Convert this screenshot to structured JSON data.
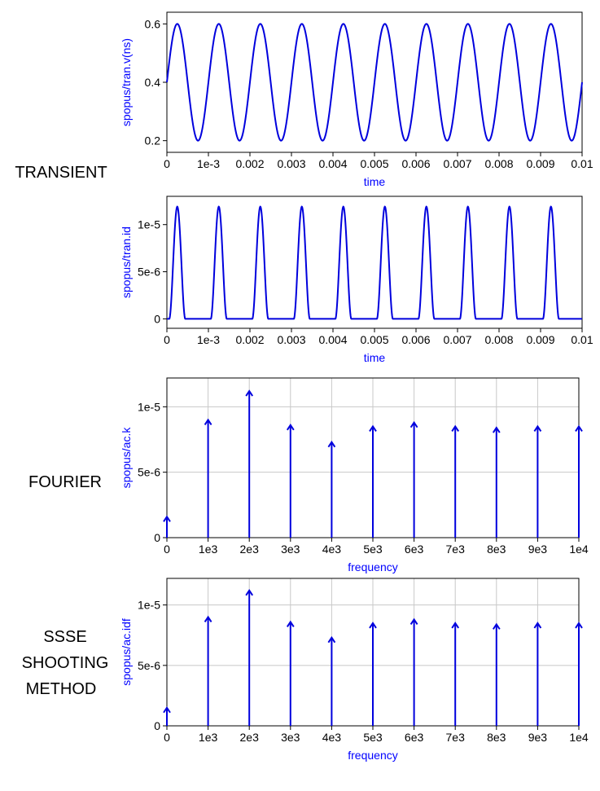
{
  "labels": {
    "transient": "TRANSIENT",
    "fourier": "FOURIER",
    "ssse_line1": "SSSE",
    "ssse_line2": "SHOOTING",
    "ssse_line3": "METHOD"
  },
  "colors": {
    "trace": "#0000dd",
    "axis_text": "#0000ff",
    "grid": "#c8c8c8"
  },
  "chart_data": [
    {
      "id": "tran-v",
      "type": "line",
      "xlabel": "time",
      "ylabel": "spopus/tran.v(ns)",
      "xlim": [
        0,
        0.01
      ],
      "ylim": [
        0.16,
        0.64
      ],
      "xticks": [
        0,
        0.001,
        0.002,
        0.003,
        0.004,
        0.005,
        0.006,
        0.007,
        0.008,
        0.009,
        0.01
      ],
      "xtick_labels": [
        "0",
        "1e-3",
        "0.002",
        "0.003",
        "0.004",
        "0.005",
        "0.006",
        "0.007",
        "0.008",
        "0.009",
        "0.01"
      ],
      "yticks": [
        0.2,
        0.4,
        0.6
      ],
      "ytick_labels": [
        "0.2",
        "0.4",
        "0.6"
      ],
      "grid": false,
      "signal": {
        "kind": "sine",
        "offset": 0.4,
        "amplitude": 0.2,
        "frequency": 1000,
        "phase": 0
      }
    },
    {
      "id": "tran-id",
      "type": "line",
      "xlabel": "time",
      "ylabel": "spopus/tran.id",
      "xlim": [
        0,
        0.01
      ],
      "ylim": [
        -1e-06,
        1.3e-05
      ],
      "xticks": [
        0,
        0.001,
        0.002,
        0.003,
        0.004,
        0.005,
        0.006,
        0.007,
        0.008,
        0.009,
        0.01
      ],
      "xtick_labels": [
        "0",
        "1e-3",
        "0.002",
        "0.003",
        "0.004",
        "0.005",
        "0.006",
        "0.007",
        "0.008",
        "0.009",
        "0.01"
      ],
      "yticks": [
        0,
        5e-06,
        1e-05
      ],
      "ytick_labels": [
        "0",
        "5e-6",
        "1e-5"
      ],
      "grid": false,
      "signal": {
        "kind": "pulse",
        "frequency": 1000,
        "peak": 1.19e-05,
        "phase": 0
      }
    },
    {
      "id": "ac-k",
      "type": "bar",
      "xlabel": "frequency",
      "ylabel": "spopus/ac.k",
      "xlim": [
        0,
        10000
      ],
      "ylim": [
        0,
        1.22e-05
      ],
      "xticks": [
        0,
        1000,
        2000,
        3000,
        4000,
        5000,
        6000,
        7000,
        8000,
        9000,
        10000
      ],
      "xtick_labels": [
        "0",
        "1e3",
        "2e3",
        "3e3",
        "4e3",
        "5e3",
        "6e3",
        "7e3",
        "8e3",
        "9e3",
        "1e4"
      ],
      "yticks": [
        0,
        5e-06,
        1e-05
      ],
      "ytick_labels": [
        "0",
        "5e-6",
        "1e-5"
      ],
      "grid": true,
      "x": [
        0,
        1000,
        2000,
        3000,
        4000,
        5000,
        6000,
        7000,
        8000,
        9000,
        10000
      ],
      "values": [
        1.6e-06,
        9e-06,
        1.12e-05,
        8.6e-06,
        7.3e-06,
        8.5e-06,
        8.8e-06,
        8.5e-06,
        8.4e-06,
        8.5e-06,
        8.5e-06
      ]
    },
    {
      "id": "ac-idf",
      "type": "bar",
      "xlabel": "frequency",
      "ylabel": "spopus/ac.idf",
      "xlim": [
        0,
        10000
      ],
      "ylim": [
        0,
        1.22e-05
      ],
      "xticks": [
        0,
        1000,
        2000,
        3000,
        4000,
        5000,
        6000,
        7000,
        8000,
        9000,
        10000
      ],
      "xtick_labels": [
        "0",
        "1e3",
        "2e3",
        "3e3",
        "4e3",
        "5e3",
        "6e3",
        "7e3",
        "8e3",
        "9e3",
        "1e4"
      ],
      "yticks": [
        0,
        5e-06,
        1e-05
      ],
      "ytick_labels": [
        "0",
        "5e-6",
        "1e-5"
      ],
      "grid": true,
      "x": [
        0,
        1000,
        2000,
        3000,
        4000,
        5000,
        6000,
        7000,
        8000,
        9000,
        10000
      ],
      "values": [
        1.5e-06,
        9e-06,
        1.12e-05,
        8.6e-06,
        7.3e-06,
        8.5e-06,
        8.8e-06,
        8.5e-06,
        8.4e-06,
        8.5e-06,
        8.5e-06
      ]
    }
  ]
}
